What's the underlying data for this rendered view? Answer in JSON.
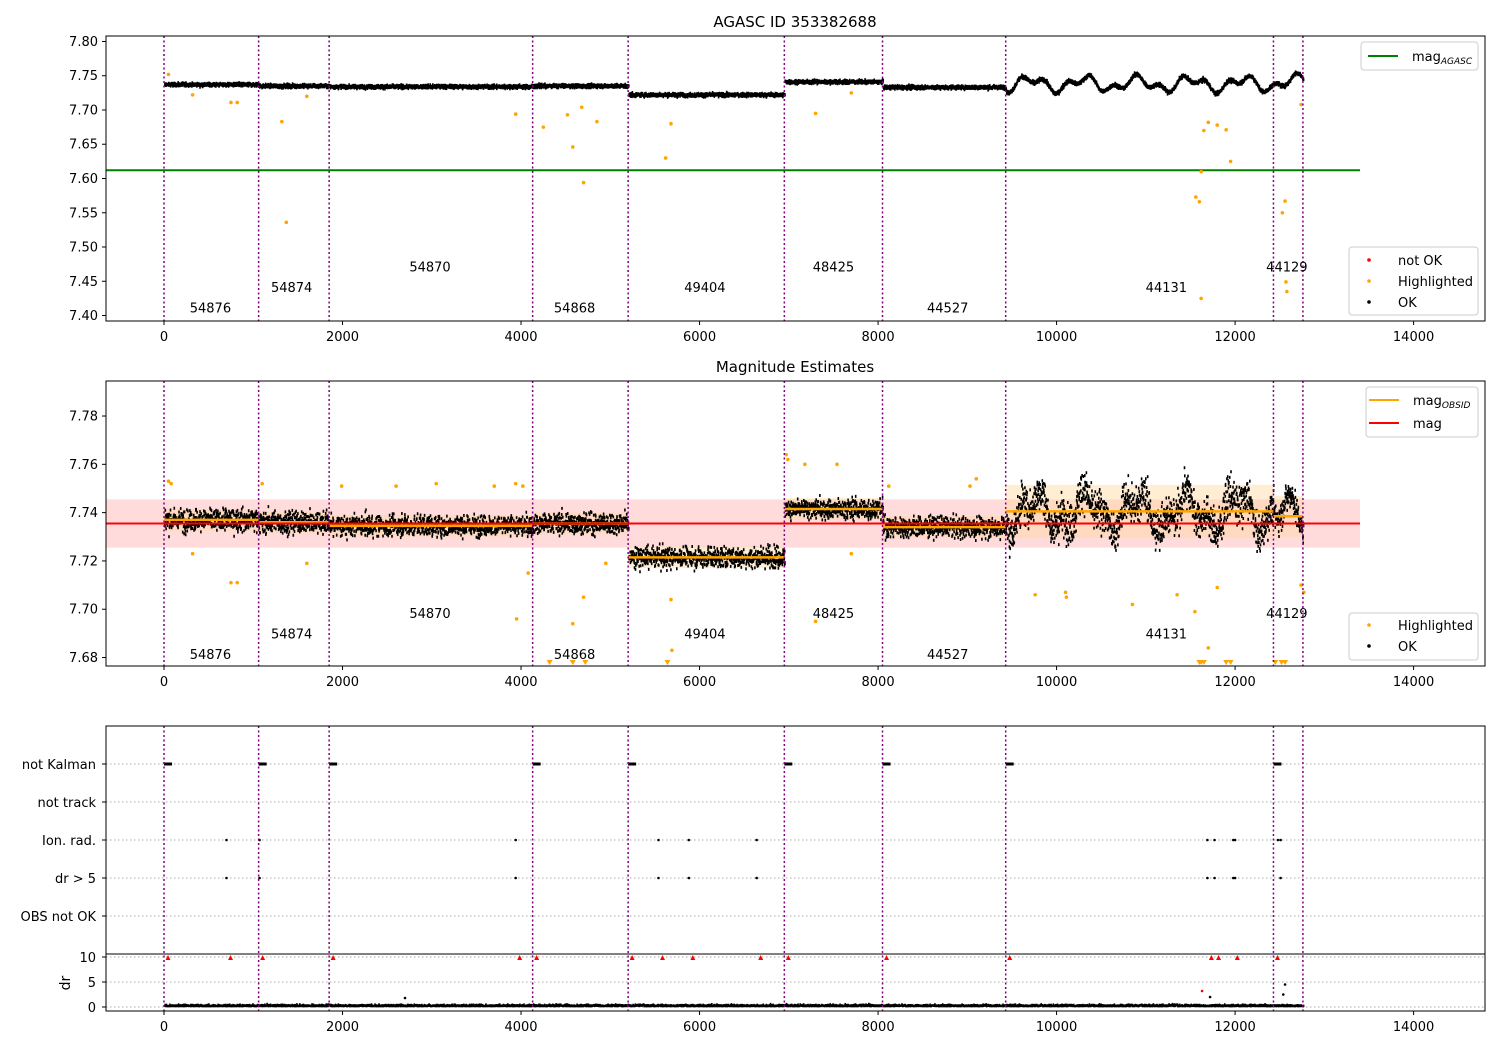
{
  "colors": {
    "ok": "#000000",
    "highlighted": "#ffa500",
    "not_ok": "#ff0000",
    "agasc_line": "#008000",
    "mag_line": "#ff0000",
    "obsid_line": "#ffa500",
    "boundary": "#800080",
    "band": "#ffcccc"
  },
  "chart_data": [
    {
      "type": "scatter",
      "title": "AGASC ID 353382688",
      "xlabel": "",
      "ylabel": "",
      "xlim": [
        -650,
        14800
      ],
      "ylim": [
        7.392,
        7.808
      ],
      "x_ticks": [
        0,
        2000,
        4000,
        6000,
        8000,
        10000,
        12000,
        14000
      ],
      "y_ticks": [
        7.4,
        7.45,
        7.5,
        7.55,
        7.6,
        7.65,
        7.7,
        7.75,
        7.8
      ],
      "legend_top": {
        "position": "top-right",
        "entries": [
          {
            "label": "mag",
            "subscript": "AGASC",
            "kind": "line",
            "color": "#008000"
          }
        ]
      },
      "legend_bottom": {
        "position": "bottom-right",
        "entries": [
          {
            "label": "not OK",
            "kind": "marker",
            "color": "#ff0000"
          },
          {
            "label": "Highlighted",
            "kind": "marker",
            "color": "#ffa500"
          },
          {
            "label": "OK",
            "kind": "marker",
            "color": "#000000"
          }
        ]
      },
      "hline": {
        "name": "mag_AGASC",
        "y": 7.612,
        "x_range": [
          -650,
          13400
        ]
      },
      "obsid_labels": [
        {
          "text": "54876",
          "x": 520,
          "y": 7.41
        },
        {
          "text": "54874",
          "x": 1430,
          "y": 7.44
        },
        {
          "text": "54870",
          "x": 2980,
          "y": 7.47
        },
        {
          "text": "54868",
          "x": 4600,
          "y": 7.41
        },
        {
          "text": "49404",
          "x": 6060,
          "y": 7.44
        },
        {
          "text": "48425",
          "x": 7500,
          "y": 7.47
        },
        {
          "text": "44527",
          "x": 8780,
          "y": 7.41
        },
        {
          "text": "44131",
          "x": 11230,
          "y": 7.44
        },
        {
          "text": "44129",
          "x": 12580,
          "y": 7.47
        }
      ],
      "highlighted_points": [
        [
          50,
          7.752
        ],
        [
          320,
          7.722
        ],
        [
          750,
          7.711
        ],
        [
          820,
          7.711
        ],
        [
          1320,
          7.683
        ],
        [
          1370,
          7.536
        ],
        [
          1600,
          7.72
        ],
        [
          3940,
          7.694
        ],
        [
          4250,
          7.675
        ],
        [
          4580,
          7.646
        ],
        [
          4520,
          7.693
        ],
        [
          4680,
          7.704
        ],
        [
          4700,
          7.594
        ],
        [
          4850,
          7.683
        ],
        [
          5620,
          7.63
        ],
        [
          5680,
          7.68
        ],
        [
          7300,
          7.695
        ],
        [
          7700,
          7.725
        ],
        [
          11560,
          7.573
        ],
        [
          11600,
          7.566
        ],
        [
          11620,
          7.61
        ],
        [
          11620,
          7.425
        ],
        [
          11650,
          7.67
        ],
        [
          11700,
          7.682
        ],
        [
          11800,
          7.678
        ],
        [
          11900,
          7.671
        ],
        [
          11950,
          7.625
        ],
        [
          12530,
          7.55
        ],
        [
          12560,
          7.567
        ],
        [
          12570,
          7.449
        ],
        [
          12580,
          7.435
        ],
        [
          12740,
          7.708
        ]
      ]
    },
    {
      "type": "scatter",
      "title": "Magnitude Estimates",
      "xlabel": "",
      "ylabel": "",
      "xlim": [
        -650,
        14800
      ],
      "ylim": [
        7.6765,
        7.7945
      ],
      "x_ticks": [
        0,
        2000,
        4000,
        6000,
        8000,
        10000,
        12000,
        14000
      ],
      "y_ticks": [
        7.68,
        7.7,
        7.72,
        7.74,
        7.76,
        7.78
      ],
      "legend_top": {
        "position": "top-right",
        "entries": [
          {
            "label": "mag",
            "subscript": "OBSID",
            "kind": "line",
            "color": "#ffa500"
          },
          {
            "label": "mag",
            "subscript": "",
            "kind": "line",
            "color": "#ff0000"
          }
        ]
      },
      "legend_bottom": {
        "position": "bottom-right",
        "entries": [
          {
            "label": "Highlighted",
            "kind": "marker",
            "color": "#ffa500"
          },
          {
            "label": "OK",
            "kind": "marker",
            "color": "#000000"
          }
        ]
      },
      "mag": {
        "y": 7.7355,
        "band": [
          7.7255,
          7.7455
        ],
        "x_range": [
          -650,
          13400
        ]
      },
      "obsid_segments": [
        {
          "obsid": "54876",
          "x0": 0,
          "x1": 1060,
          "mean": 7.737,
          "sd": 0.006,
          "band": 0.0045
        },
        {
          "obsid": "54874",
          "x0": 1060,
          "x1": 1850,
          "mean": 7.736,
          "sd": 0.006,
          "band": 0.0045
        },
        {
          "obsid": "54870",
          "x0": 1850,
          "x1": 4130,
          "mean": 7.7345,
          "sd": 0.0055,
          "band": 0.0045
        },
        {
          "obsid": "54868",
          "x0": 4130,
          "x1": 5200,
          "mean": 7.7355,
          "sd": 0.0055,
          "band": 0.0045
        },
        {
          "obsid": "49404",
          "x0": 5200,
          "x1": 6950,
          "mean": 7.7215,
          "sd": 0.0055,
          "band": 0.0045
        },
        {
          "obsid": "48425",
          "x0": 6950,
          "x1": 8050,
          "mean": 7.7415,
          "sd": 0.0055,
          "band": 0.0045
        },
        {
          "obsid": "44527",
          "x0": 8050,
          "x1": 9430,
          "mean": 7.734,
          "sd": 0.0055,
          "band": 0.0045
        },
        {
          "obsid": "44131",
          "x0": 9430,
          "x1": 12430,
          "mean": 7.7405,
          "sd": 0.011,
          "band": 0.011
        },
        {
          "obsid": "44129",
          "x0": 12430,
          "x1": 12760,
          "mean": 7.7385,
          "sd": 0.0085,
          "band": 0.0085
        }
      ],
      "obsid_labels": [
        {
          "text": "54876",
          "x": 520,
          "y": 7.681
        },
        {
          "text": "54874",
          "x": 1430,
          "y": 7.6895
        },
        {
          "text": "54870",
          "x": 2980,
          "y": 7.698
        },
        {
          "text": "54868",
          "x": 4600,
          "y": 7.681
        },
        {
          "text": "49404",
          "x": 6060,
          "y": 7.6895
        },
        {
          "text": "48425",
          "x": 7500,
          "y": 7.698
        },
        {
          "text": "44527",
          "x": 8780,
          "y": 7.681
        },
        {
          "text": "44131",
          "x": 11230,
          "y": 7.6895
        },
        {
          "text": "44129",
          "x": 12580,
          "y": 7.698
        }
      ],
      "highlighted_points": [
        [
          50,
          7.753
        ],
        [
          80,
          7.752
        ],
        [
          320,
          7.723
        ],
        [
          750,
          7.711
        ],
        [
          820,
          7.711
        ],
        [
          1100,
          7.752
        ],
        [
          1600,
          7.719
        ],
        [
          1990,
          7.751
        ],
        [
          2600,
          7.751
        ],
        [
          3050,
          7.752
        ],
        [
          3700,
          7.751
        ],
        [
          3940,
          7.752
        ],
        [
          4020,
          7.751
        ],
        [
          3950,
          7.696
        ],
        [
          4080,
          7.715
        ],
        [
          4580,
          7.694
        ],
        [
          4700,
          7.705
        ],
        [
          4950,
          7.719
        ],
        [
          5680,
          7.704
        ],
        [
          5690,
          7.683
        ],
        [
          6970,
          7.764
        ],
        [
          6990,
          7.762
        ],
        [
          7180,
          7.76
        ],
        [
          7300,
          7.695
        ],
        [
          7540,
          7.76
        ],
        [
          7700,
          7.723
        ],
        [
          8120,
          7.751
        ],
        [
          9030,
          7.751
        ],
        [
          9100,
          7.754
        ],
        [
          9760,
          7.706
        ],
        [
          10100,
          7.707
        ],
        [
          10110,
          7.705
        ],
        [
          10850,
          7.702
        ],
        [
          11350,
          7.706
        ],
        [
          11550,
          7.699
        ],
        [
          11700,
          7.684
        ],
        [
          11800,
          7.709
        ],
        [
          12740,
          7.71
        ],
        [
          12770,
          7.707
        ]
      ],
      "clipped_markers": [
        4320,
        4580,
        4720,
        5640,
        11600,
        11620,
        11650,
        11900,
        11950,
        12450,
        12520,
        12560
      ]
    },
    {
      "type": "scatter",
      "title": "",
      "xlabel": "",
      "ylabel": "dr",
      "xlim": [
        -650,
        14800
      ],
      "flag_rows": [
        "not Kalman",
        "not track",
        "Ion. rad.",
        "dr > 5",
        "OBS not OK"
      ],
      "dr_ticks": [
        0,
        5,
        10
      ],
      "dr_ylim": [
        -0.8,
        10.6
      ],
      "x_ticks": [
        0,
        2000,
        4000,
        6000,
        8000,
        10000,
        12000,
        14000
      ],
      "not_kalman_x": [
        0,
        1060,
        1850,
        4130,
        5200,
        6950,
        8050,
        9430,
        12430
      ],
      "ion_rad_x": [
        700,
        1070,
        3940,
        5540,
        5880,
        6640,
        11690,
        11770,
        11980,
        12000,
        12480,
        12510
      ],
      "dr_gt5_x": [
        700,
        1070,
        3940,
        5540,
        5880,
        6640,
        11690,
        11770,
        11980,
        12000,
        12510
      ],
      "dr_red_markers_x": [
        0,
        700,
        1060,
        1850,
        3940,
        4130,
        5200,
        5540,
        5880,
        6640,
        6950,
        8050,
        9430,
        11690,
        11770,
        11980,
        12430
      ],
      "dr_outliers": [
        [
          11630,
          3.2
        ],
        [
          12560,
          4.5
        ],
        [
          12540,
          2.5
        ],
        [
          11720,
          2.0
        ],
        [
          2700,
          1.8
        ]
      ]
    }
  ],
  "obsid_boundaries_x": [
    0,
    1060,
    1850,
    4130,
    5200,
    6950,
    8050,
    9430,
    12430,
    12760
  ]
}
